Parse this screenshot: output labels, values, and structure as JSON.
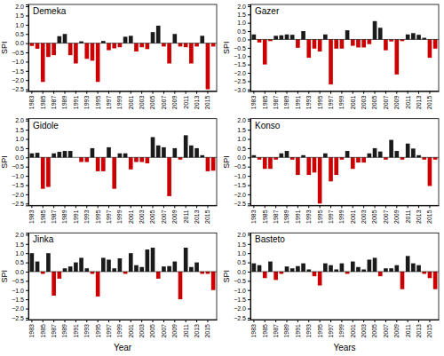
{
  "chart_data": [
    {
      "type": "bar",
      "title": "Demeka",
      "ylabel": "SPI",
      "grid": false,
      "categories": [
        1983,
        null,
        1985,
        null,
        1987,
        null,
        1989,
        null,
        1991,
        null,
        1993,
        null,
        1995,
        null,
        1997,
        null,
        1999,
        null,
        2001,
        null,
        2003,
        null,
        2005,
        null,
        2007,
        null,
        2009,
        null,
        2011,
        null,
        2013,
        null,
        2015,
        null
      ],
      "values": [
        -0.15,
        -0.3,
        -2.1,
        -0.75,
        -0.65,
        0.38,
        0.5,
        -0.65,
        -1.1,
        0.1,
        -0.85,
        -0.95,
        -2.1,
        0.12,
        -0.38,
        -0.28,
        -0.22,
        0.35,
        0.4,
        -0.45,
        -0.22,
        -0.32,
        0.6,
        0.95,
        -0.18,
        -1.1,
        0.5,
        -0.18,
        -0.22,
        -1.1,
        -0.18,
        0.4,
        -2.5,
        -0.18
      ],
      "colors": [
        "#cc0000",
        "#cc0000",
        "#cc0000",
        "#cc0000",
        "#cc0000",
        "#1a1a1a",
        "#1a1a1a",
        "#cc0000",
        "#cc0000",
        "#1a1a1a",
        "#cc0000",
        "#cc0000",
        "#cc0000",
        "#1a1a1a",
        "#cc0000",
        "#cc0000",
        "#cc0000",
        "#1a1a1a",
        "#1a1a1a",
        "#cc0000",
        "#cc0000",
        "#cc0000",
        "#1a1a1a",
        "#1a1a1a",
        "#cc0000",
        "#cc0000",
        "#1a1a1a",
        "#cc0000",
        "#cc0000",
        "#cc0000",
        "#cc0000",
        "#1a1a1a",
        "#cc0000",
        "#cc0000"
      ],
      "ylim": [
        -2.6,
        2.1
      ],
      "yticks": [
        {
          "value": -2.5,
          "label": "−2.5"
        },
        {
          "value": -2,
          "label": "−2.0"
        },
        {
          "value": -1.5,
          "label": "−1.5"
        },
        {
          "value": -1,
          "label": "−1.0"
        },
        {
          "value": -0.5,
          "label": "−0.5"
        },
        {
          "value": 0,
          "label": "0.0"
        },
        0.5,
        {
          "value": 1,
          "label": "1.0"
        },
        1.5,
        {
          "value": 2,
          "label": "2.0"
        }
      ]
    },
    {
      "type": "bar",
      "title": "Gazer",
      "ylabel": "SPI",
      "grid": false,
      "categories": [
        1983,
        null,
        1985,
        null,
        1987,
        null,
        1989,
        null,
        1991,
        null,
        1993,
        null,
        1995,
        null,
        1997,
        null,
        1999,
        null,
        2001,
        null,
        2003,
        null,
        2005,
        null,
        2007,
        null,
        2009,
        null,
        2011,
        null,
        2013,
        null,
        2015,
        null
      ],
      "values": [
        0.3,
        -0.18,
        -1.5,
        -0.1,
        0.22,
        0.25,
        0.3,
        0.28,
        -0.5,
        0.5,
        -1.1,
        -0.55,
        -0.72,
        0.3,
        -2.7,
        -0.55,
        -0.55,
        0.55,
        -0.38,
        -0.48,
        -0.48,
        -0.28,
        1.1,
        0.7,
        -0.65,
        -0.12,
        -2.1,
        -0.1,
        0.3,
        0.38,
        0.28,
        0.1,
        -1.1,
        -0.55
      ],
      "colors": [
        "#1a1a1a",
        "#cc0000",
        "#cc0000",
        "#cc0000",
        "#1a1a1a",
        "#1a1a1a",
        "#1a1a1a",
        "#1a1a1a",
        "#cc0000",
        "#1a1a1a",
        "#cc0000",
        "#cc0000",
        "#cc0000",
        "#1a1a1a",
        "#cc0000",
        "#cc0000",
        "#cc0000",
        "#1a1a1a",
        "#cc0000",
        "#cc0000",
        "#cc0000",
        "#cc0000",
        "#1a1a1a",
        "#1a1a1a",
        "#cc0000",
        "#cc0000",
        "#cc0000",
        "#cc0000",
        "#1a1a1a",
        "#1a1a1a",
        "#1a1a1a",
        "#1a1a1a",
        "#cc0000",
        "#cc0000"
      ],
      "ylim": [
        -3.1,
        2.1
      ],
      "yticks": [
        {
          "value": -3,
          "label": "−3.0"
        },
        {
          "value": -2.5,
          "label": "−2.5"
        },
        {
          "value": -2,
          "label": "−2.0"
        },
        {
          "value": -1.5,
          "label": "−1.5"
        },
        {
          "value": -1,
          "label": "−1.0"
        },
        {
          "value": -0.5,
          "label": "−0.5"
        },
        {
          "value": 0,
          "label": "0.0"
        },
        0.5,
        {
          "value": 1,
          "label": "1.0"
        },
        1.5,
        {
          "value": 2,
          "label": "2.0"
        }
      ]
    },
    {
      "type": "bar",
      "title": "Gidole",
      "ylabel": "SPI",
      "grid": false,
      "categories": [
        1983,
        null,
        1985,
        null,
        1987,
        null,
        1989,
        null,
        1991,
        null,
        1993,
        null,
        1995,
        null,
        1997,
        null,
        1999,
        null,
        2001,
        null,
        2003,
        null,
        2005,
        null,
        2007,
        null,
        2009,
        null,
        2011,
        null,
        2013,
        null,
        2015,
        null
      ],
      "values": [
        0.22,
        0.25,
        -1.7,
        -1.6,
        0.22,
        0.3,
        0.35,
        0.35,
        0.0,
        -0.25,
        -0.25,
        0.5,
        -0.75,
        -0.75,
        0.55,
        -1.7,
        0.22,
        0.22,
        -0.65,
        -0.25,
        -0.25,
        -0.32,
        1.1,
        0.65,
        0.55,
        -2.1,
        0.5,
        -0.12,
        1.2,
        0.65,
        0.5,
        0.12,
        -0.75,
        -0.72
      ],
      "colors": [
        "#1a1a1a",
        "#1a1a1a",
        "#cc0000",
        "#cc0000",
        "#1a1a1a",
        "#1a1a1a",
        "#1a1a1a",
        "#1a1a1a",
        "#1a1a1a",
        "#cc0000",
        "#cc0000",
        "#1a1a1a",
        "#cc0000",
        "#cc0000",
        "#1a1a1a",
        "#cc0000",
        "#1a1a1a",
        "#1a1a1a",
        "#cc0000",
        "#cc0000",
        "#cc0000",
        "#cc0000",
        "#1a1a1a",
        "#1a1a1a",
        "#1a1a1a",
        "#cc0000",
        "#1a1a1a",
        "#cc0000",
        "#1a1a1a",
        "#1a1a1a",
        "#1a1a1a",
        "#1a1a1a",
        "#cc0000",
        "#cc0000"
      ],
      "ylim": [
        -2.6,
        2.1
      ],
      "yticks": [
        {
          "value": -2.5,
          "label": "−2.5"
        },
        {
          "value": -2,
          "label": "−2.0"
        },
        {
          "value": -1.5,
          "label": "−1.5"
        },
        {
          "value": -1,
          "label": "−1.0"
        },
        {
          "value": -0.5,
          "label": "−0.5"
        },
        {
          "value": 0,
          "label": "0.0"
        },
        0.5,
        {
          "value": 1,
          "label": "1.0"
        },
        1.5,
        {
          "value": 2,
          "label": "2.0"
        }
      ]
    },
    {
      "type": "bar",
      "title": "Konso",
      "ylabel": "SPI",
      "grid": false,
      "categories": [
        1983,
        null,
        1985,
        null,
        1987,
        null,
        1989,
        null,
        1991,
        null,
        1993,
        null,
        1995,
        null,
        1997,
        null,
        1999,
        null,
        2001,
        null,
        2003,
        null,
        2005,
        null,
        2007,
        null,
        2009,
        null,
        2011,
        null,
        2013,
        null,
        2015,
        null
      ],
      "values": [
        0.12,
        -0.12,
        -0.62,
        -0.62,
        -0.12,
        0.22,
        0.35,
        -0.12,
        -0.95,
        0.12,
        -0.95,
        -0.82,
        -2.5,
        0.22,
        -1.3,
        -0.95,
        -0.12,
        0.35,
        -0.62,
        -0.28,
        -0.28,
        0.22,
        0.5,
        0.32,
        -0.12,
        0.95,
        0.35,
        -0.12,
        0.75,
        0.48,
        0.12,
        -0.12,
        -1.55,
        -0.12
      ],
      "colors": [
        "#1a1a1a",
        "#cc0000",
        "#cc0000",
        "#cc0000",
        "#cc0000",
        "#1a1a1a",
        "#1a1a1a",
        "#cc0000",
        "#cc0000",
        "#1a1a1a",
        "#cc0000",
        "#cc0000",
        "#cc0000",
        "#1a1a1a",
        "#cc0000",
        "#cc0000",
        "#cc0000",
        "#1a1a1a",
        "#cc0000",
        "#cc0000",
        "#cc0000",
        "#1a1a1a",
        "#1a1a1a",
        "#1a1a1a",
        "#cc0000",
        "#1a1a1a",
        "#1a1a1a",
        "#cc0000",
        "#1a1a1a",
        "#1a1a1a",
        "#1a1a1a",
        "#cc0000",
        "#cc0000",
        "#cc0000"
      ],
      "ylim": [
        -2.6,
        2.1
      ],
      "yticks": [
        {
          "value": -2.5,
          "label": "−2.5"
        },
        {
          "value": -2,
          "label": "−2.0"
        },
        {
          "value": -1.5,
          "label": "−1.5"
        },
        {
          "value": -1,
          "label": "−1.0"
        },
        {
          "value": -0.5,
          "label": "−0.5"
        },
        {
          "value": 0,
          "label": "0.0"
        },
        0.5,
        {
          "value": 1,
          "label": "1.0"
        },
        1.5,
        {
          "value": 2,
          "label": "2.0"
        }
      ]
    },
    {
      "type": "bar",
      "title": "Jinka",
      "ylabel": "SPI",
      "xlabel": "Year",
      "grid": false,
      "categories": [
        1983,
        null,
        1985,
        null,
        1987,
        null,
        1989,
        null,
        1991,
        null,
        1993,
        null,
        1995,
        null,
        1997,
        null,
        1999,
        null,
        2001,
        null,
        2003,
        null,
        2005,
        null,
        2007,
        null,
        2009,
        null,
        2011,
        null,
        2013,
        null,
        2015,
        null
      ],
      "values": [
        1.0,
        0.55,
        -0.12,
        1.0,
        -1.3,
        -0.38,
        0.18,
        0.28,
        0.5,
        0.75,
        0.18,
        -0.12,
        -1.35,
        0.75,
        0.65,
        0.18,
        0.72,
        -0.12,
        1.0,
        0.35,
        0.25,
        1.2,
        1.3,
        -0.38,
        0.28,
        0.3,
        0.55,
        -1.5,
        1.3,
        0.25,
        0.5,
        -0.12,
        -0.12,
        -1.0
      ],
      "colors": [
        "#1a1a1a",
        "#1a1a1a",
        "#cc0000",
        "#1a1a1a",
        "#cc0000",
        "#cc0000",
        "#1a1a1a",
        "#1a1a1a",
        "#1a1a1a",
        "#1a1a1a",
        "#1a1a1a",
        "#cc0000",
        "#cc0000",
        "#1a1a1a",
        "#1a1a1a",
        "#1a1a1a",
        "#1a1a1a",
        "#cc0000",
        "#1a1a1a",
        "#1a1a1a",
        "#1a1a1a",
        "#1a1a1a",
        "#1a1a1a",
        "#cc0000",
        "#1a1a1a",
        "#1a1a1a",
        "#1a1a1a",
        "#cc0000",
        "#1a1a1a",
        "#1a1a1a",
        "#1a1a1a",
        "#cc0000",
        "#cc0000",
        "#cc0000"
      ],
      "ylim": [
        -2.6,
        2.1
      ],
      "yticks": [
        {
          "value": -2.5,
          "label": "−2.5"
        },
        {
          "value": -2,
          "label": "−2.0"
        },
        {
          "value": -1.5,
          "label": "−1.5"
        },
        {
          "value": -1,
          "label": "−1.0"
        },
        {
          "value": -0.5,
          "label": "−0.5"
        },
        {
          "value": 0,
          "label": "0.0"
        },
        0.5,
        {
          "value": 1,
          "label": "1.0"
        },
        1.5,
        {
          "value": 2,
          "label": "2.0"
        }
      ]
    },
    {
      "type": "bar",
      "title": "Basteto",
      "ylabel": "SPI",
      "xlabel": "Years",
      "grid": false,
      "categories": [
        1983,
        null,
        1985,
        null,
        1987,
        null,
        1989,
        null,
        1991,
        null,
        1993,
        null,
        1995,
        null,
        1997,
        null,
        1999,
        null,
        2001,
        null,
        2003,
        null,
        2005,
        null,
        2007,
        null,
        2009,
        null,
        2011,
        null,
        2013,
        null,
        2015,
        null
      ],
      "values": [
        0.45,
        0.35,
        -0.35,
        0.55,
        -0.45,
        -0.12,
        0.28,
        0.18,
        0.3,
        0.45,
        0.12,
        -0.25,
        -0.75,
        0.45,
        0.35,
        0.12,
        0.45,
        -0.12,
        0.55,
        0.25,
        0.12,
        0.65,
        0.75,
        -0.25,
        0.18,
        0.18,
        0.35,
        -0.95,
        0.85,
        0.45,
        0.35,
        -0.12,
        -0.35,
        -0.95
      ],
      "colors": [
        "#1a1a1a",
        "#1a1a1a",
        "#cc0000",
        "#1a1a1a",
        "#cc0000",
        "#cc0000",
        "#1a1a1a",
        "#1a1a1a",
        "#1a1a1a",
        "#1a1a1a",
        "#1a1a1a",
        "#cc0000",
        "#cc0000",
        "#1a1a1a",
        "#1a1a1a",
        "#1a1a1a",
        "#1a1a1a",
        "#cc0000",
        "#1a1a1a",
        "#1a1a1a",
        "#1a1a1a",
        "#1a1a1a",
        "#1a1a1a",
        "#cc0000",
        "#1a1a1a",
        "#1a1a1a",
        "#1a1a1a",
        "#cc0000",
        "#1a1a1a",
        "#1a1a1a",
        "#1a1a1a",
        "#cc0000",
        "#cc0000",
        "#cc0000"
      ],
      "ylim": [
        -2.6,
        2.1
      ],
      "yticks": [
        {
          "value": -2.5,
          "label": "−2.5"
        },
        {
          "value": -2,
          "label": "−2.0"
        },
        {
          "value": -1.5,
          "label": "−1.5"
        },
        {
          "value": -1,
          "label": "−1.0"
        },
        {
          "value": -0.5,
          "label": "−0.5"
        },
        {
          "value": 0,
          "label": "0.0"
        },
        0.5,
        {
          "value": 1,
          "label": "1.0"
        },
        1.5,
        {
          "value": 2,
          "label": "2.0"
        }
      ]
    }
  ]
}
